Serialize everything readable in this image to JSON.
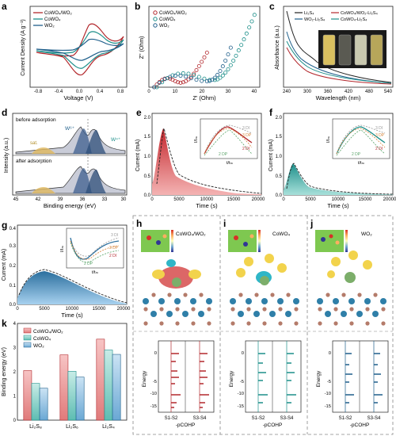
{
  "colors": {
    "red": "#b3282d",
    "teal": "#1d8f8a",
    "blue": "#1f5f8b",
    "navy": "#1b3a5c",
    "lightred": "#f2a3a3",
    "lightteal": "#9ed9d3",
    "lightblue": "#9cc7e6",
    "cyan": "#2f8fb0",
    "orange": "#d6843a",
    "green": "#5aa469",
    "gray": "#9a9a9a",
    "gold": "#c7a23a"
  },
  "panels": {
    "a": {
      "label": "a",
      "xlabel": "Voltage (V)",
      "ylabel": "Current Density (A g⁻¹)",
      "legend": [
        "CoWO₄/WO₂",
        "CoWO₄",
        "WO₂"
      ],
      "xticks": [
        "-0.8",
        "-0.4",
        "0.0",
        "0.4",
        "0.8"
      ]
    },
    "b": {
      "label": "b",
      "xlabel": "Z' (Ohm)",
      "ylabel": "Z'' (Ohm)",
      "legend": [
        "CoWO₄/WO₂",
        "CoWO₄",
        "WO₂"
      ],
      "xticks": [
        "0",
        "10",
        "20",
        "30",
        "40"
      ]
    },
    "c": {
      "label": "c",
      "xlabel": "Wavelength (nm)",
      "ylabel": "Absorbance (a.u.)",
      "legend": [
        "Li₂S₄",
        "WO₂-Li₂S₄",
        "CoWO₄/WO₂-Li₂S₄",
        "CoWO₄-Li₂S₄"
      ],
      "xticks": [
        "240",
        "300",
        "360",
        "420",
        "480",
        "540"
      ]
    },
    "d": {
      "label": "d",
      "xlabel": "Binding energy (eV)",
      "ylabel": "Intensity (a.u.)",
      "top_text": "before adsorption",
      "bottom_text": "after adsorption",
      "sat": "sat.",
      "w6": "W⁶⁺",
      "w4": "W⁴⁺",
      "xticks": [
        "45",
        "42",
        "39",
        "36",
        "33",
        "30"
      ]
    },
    "e": {
      "label": "e",
      "xlabel": "Time (s)",
      "ylabel": "Current (mA)",
      "xticks": [
        "0",
        "5000",
        "10000",
        "15000",
        "20000"
      ],
      "yticks": [
        "0.0",
        "0.5",
        "1.0",
        "1.5",
        "2.0"
      ],
      "inset": {
        "xlabel": "t/tₘ",
        "ylabel": "I/Iₘ",
        "labels": [
          "3 DI",
          "3 DP",
          "2 DI",
          "2 DP"
        ]
      }
    },
    "f": {
      "label": "f",
      "xlabel": "Time (s)",
      "ylabel": "Current (mA)",
      "xticks": [
        "0",
        "5000",
        "10000",
        "15000",
        "20000"
      ],
      "yticks": [
        "0.0",
        "0.5",
        "1.0",
        "1.5",
        "2.0"
      ],
      "inset": {
        "xlabel": "t/tₘ",
        "ylabel": "I/Iₘ",
        "labels": [
          "3 DI",
          "3 DP",
          "2 DI",
          "2 DP"
        ]
      }
    },
    "g": {
      "label": "g",
      "xlabel": "Time (s)",
      "ylabel": "Current (mA)",
      "xticks": [
        "0",
        "5000",
        "10000",
        "15000",
        "20000"
      ],
      "yticks": [
        "0.0",
        "0.1",
        "0.2",
        "0.3",
        "0.4"
      ],
      "inset": {
        "xlabel": "t/tₘ",
        "ylabel": "I/Iₘ",
        "labels": [
          "3 DI",
          "3 DP",
          "2 DI",
          "2 DP"
        ]
      }
    },
    "h": {
      "label": "h",
      "title": "CoWO₄/WO₂",
      "pcohp_label": "-pCOHP",
      "ticks": [
        "S1-S2",
        "S3-S4"
      ],
      "energy_label": "Energy"
    },
    "i": {
      "label": "i",
      "title": "CoWO₄",
      "pcohp_label": "-pCOHP",
      "ticks": [
        "S1-S2",
        "S3-S4"
      ],
      "energy_label": "Energy"
    },
    "j": {
      "label": "j",
      "title": "WO₂",
      "pcohp_label": "-pCOHP",
      "ticks": [
        "S1-S2",
        "S3-S4"
      ],
      "energy_label": "Energy"
    },
    "k": {
      "label": "k",
      "ylabel": "Binding energy (eV)",
      "legend": [
        "CoWO₄/WO₂",
        "CoWO₄",
        "WO₂"
      ]
    }
  },
  "chart_data": [
    {
      "type": "bar",
      "panel": "k",
      "categories": [
        "Li₂S₈",
        "Li₂S₆",
        "Li₂S₄"
      ],
      "series": [
        {
          "name": "CoWO₄/WO₂",
          "values": [
            2.05,
            2.7,
            3.35
          ]
        },
        {
          "name": "CoWO₄",
          "values": [
            1.52,
            2.02,
            2.9
          ]
        },
        {
          "name": "WO₂",
          "values": [
            1.32,
            1.78,
            2.72
          ]
        }
      ],
      "ylabel": "Binding energy (eV)",
      "ylim": [
        0,
        4
      ],
      "yticks": [
        0,
        1,
        2,
        3,
        4
      ]
    },
    {
      "type": "scatter",
      "panel": "b",
      "xlabel": "Z' (Ohm)",
      "ylabel": "Z'' (Ohm)",
      "xlim": [
        0,
        42
      ],
      "series": [
        {
          "name": "CoWO₄/WO₂",
          "x": [
            2,
            3,
            4,
            5,
            6,
            7,
            8,
            9,
            10,
            11,
            12,
            13,
            14,
            15,
            16,
            17,
            18,
            19,
            20,
            21,
            22
          ],
          "y": [
            0,
            1.2,
            2.3,
            3.2,
            3.8,
            4.0,
            3.8,
            3.3,
            2.7,
            2.2,
            2.0,
            2.2,
            2.7,
            3.5,
            4.6,
            6,
            7.6,
            9.4,
            11.3,
            13.3,
            15.4
          ]
        },
        {
          "name": "CoWO₄",
          "x": [
            3,
            5,
            7,
            9,
            11,
            13,
            15,
            17,
            19,
            21,
            23,
            25,
            26,
            27,
            28,
            29,
            30,
            31,
            32,
            33,
            34,
            35,
            36,
            37,
            38,
            39,
            40
          ],
          "y": [
            0,
            2.2,
            4.0,
            5.3,
            6.0,
            6.2,
            6.0,
            5.4,
            4.6,
            3.8,
            3.2,
            3.2,
            3.5,
            4.2,
            5.2,
            6.5,
            8.0,
            9.8,
            11.8,
            14,
            16.4,
            18.8,
            21.3,
            23.9,
            26.6,
            29.3,
            32.2
          ]
        },
        {
          "name": "WO₂",
          "x": [
            2,
            4,
            6,
            8,
            10,
            12,
            14,
            16,
            18,
            20,
            22,
            23,
            24,
            25,
            26,
            27,
            28,
            29,
            30,
            31
          ],
          "y": [
            0,
            2.0,
            3.6,
            4.6,
            5.1,
            5.1,
            4.7,
            4.0,
            3.3,
            2.8,
            2.6,
            2.8,
            3.3,
            4.2,
            5.5,
            7.2,
            9.3,
            11.8,
            14.6,
            17.6
          ]
        }
      ]
    }
  ]
}
